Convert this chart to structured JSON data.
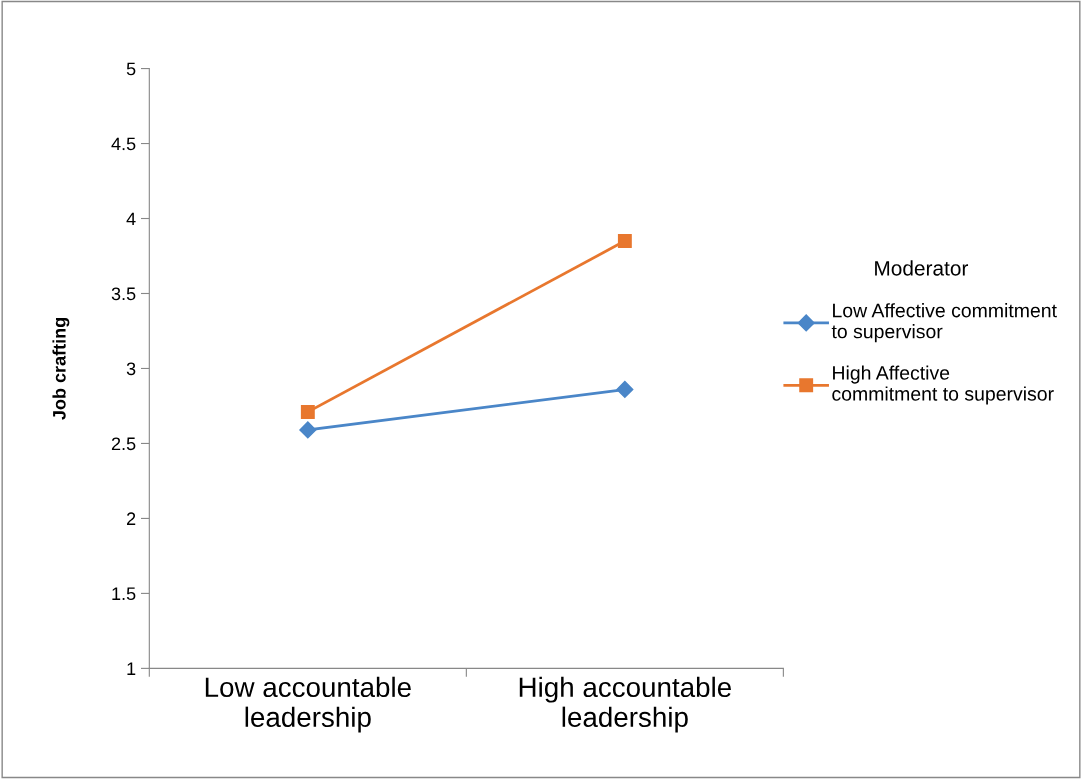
{
  "chart_data": {
    "type": "line",
    "ylabel": "Job crafting",
    "legend_title": "Moderator",
    "categories": [
      "Low accountable\nleadership",
      "High accountable\nleadership"
    ],
    "series": [
      {
        "name": "Low Affective commitment\nto supervisor",
        "color": "#4a86c8",
        "marker": "diamond",
        "values": [
          2.59,
          2.86
        ]
      },
      {
        "name": "High Affective\ncommitment to supervisor",
        "color": "#e8772e",
        "marker": "square",
        "values": [
          2.71,
          3.85
        ]
      }
    ],
    "ylim": [
      1,
      5
    ],
    "yticks": [
      1,
      {
        "value": 1.5,
        "label": "1.5"
      },
      2,
      {
        "value": 2.5,
        "label": "2.5"
      },
      3,
      {
        "value": 3.5,
        "label": "3.5"
      },
      4,
      {
        "value": 4.5,
        "label": "4.5"
      },
      5
    ],
    "grid": false,
    "legend": "right",
    "line_style": "solid"
  }
}
